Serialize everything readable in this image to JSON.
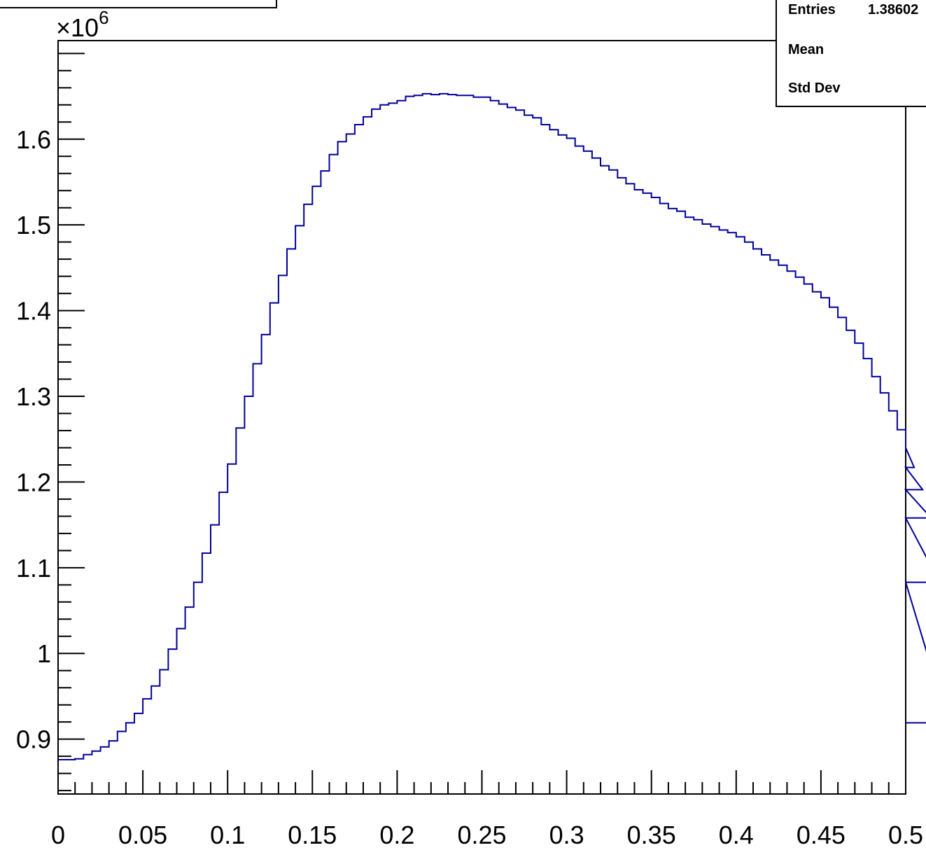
{
  "stats_box": {
    "rows": [
      {
        "label": "Entries",
        "value": "1.38602"
      },
      {
        "label": "Mean",
        "value": ""
      },
      {
        "label": "Std Dev",
        "value": ""
      }
    ]
  },
  "colors": {
    "line": "#000099",
    "axis": "#000000",
    "background": "#ffffff"
  },
  "chart_data": {
    "type": "histogram",
    "title": "",
    "xlabel": "",
    "ylabel": "",
    "y_exponent_label": "×10^6",
    "xlim": [
      0,
      0.5
    ],
    "ylim": [
      836000,
      1715000
    ],
    "bin_width": 0.005,
    "x_tick_labels": [
      "0",
      "0.05",
      "0.1",
      "0.15",
      "0.2",
      "0.25",
      "0.3",
      "0.35",
      "0.4",
      "0.45",
      "0.5"
    ],
    "y_tick_labels": [
      "0.9",
      "1",
      "1.1",
      "1.2",
      "1.3",
      "1.4",
      "1.5",
      "1.6"
    ],
    "y_tick_values": [
      900000,
      1000000,
      1100000,
      1200000,
      1300000,
      1400000,
      1500000,
      1600000
    ],
    "grid": false,
    "legend": "none",
    "bin_contents": [
      876000,
      876000,
      877000,
      882000,
      886000,
      891000,
      898000,
      909000,
      919000,
      930000,
      947000,
      962000,
      981000,
      1005000,
      1029000,
      1054000,
      1083000,
      1117000,
      1150000,
      1188000,
      1221000,
      1263000,
      1300000,
      1338000,
      1372000,
      1409000,
      1441000,
      1472000,
      1499000,
      1524000,
      1545000,
      1563000,
      1582000,
      1597000,
      1606000,
      1617000,
      1626000,
      1635000,
      1640000,
      1642000,
      1645000,
      1650000,
      1651000,
      1653000,
      1652000,
      1653000,
      1652000,
      1651000,
      1651000,
      1649000,
      1649000,
      1645000,
      1641000,
      1637000,
      1634000,
      1628000,
      1625000,
      1617000,
      1611000,
      1605000,
      1601000,
      1592000,
      1586000,
      1578000,
      1569000,
      1564000,
      1555000,
      1548000,
      1541000,
      1537000,
      1532000,
      1525000,
      1519000,
      1516000,
      1509000,
      1506000,
      1501000,
      1498000,
      1494000,
      1491000,
      1486000,
      1480000,
      1472000,
      1465000,
      1459000,
      1453000,
      1446000,
      1439000,
      1431000,
      1422000,
      1415000,
      1404000,
      1392000,
      1377000,
      1362000,
      1344000,
      1323000,
      1304000,
      1283000,
      1261000,
      1240000,
      1217000,
      1191000,
      1158000,
      1083000,
      919000
    ]
  }
}
